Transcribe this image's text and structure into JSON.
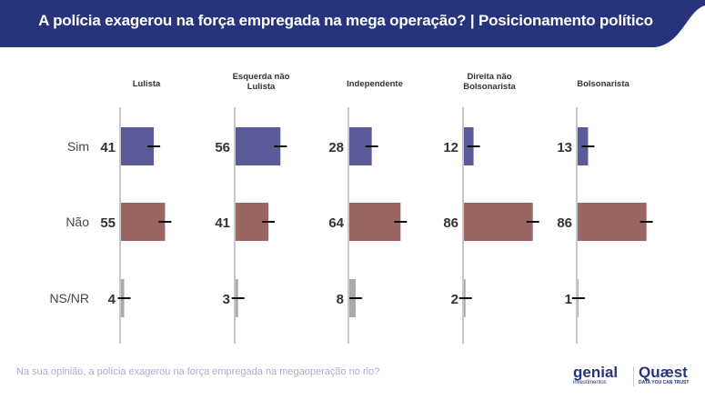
{
  "question": "Na sua opinião, a polícia exagerou na força empregada na megaoperação no rio?",
  "logos": [
    {
      "name": "genial",
      "sub": "investimentos"
    },
    {
      "name": "Quæst",
      "sub": "DATA YOU CAN TRUST"
    }
  ],
  "chart_data": {
    "type": "bar",
    "title": "A polícia exagerou na força empregada na mega operação? | Posicionamento político",
    "categories": [
      "Sim",
      "Não",
      "NS/NR"
    ],
    "groups": [
      "Lulista",
      "Esquerda não Lulista",
      "Independente",
      "Direita não Bolsonarista",
      "Bolsonarista"
    ],
    "series": [
      {
        "group": "Lulista",
        "values": [
          41,
          55,
          4
        ]
      },
      {
        "group": "Esquerda não Lulista",
        "values": [
          56,
          41,
          3
        ]
      },
      {
        "group": "Independente",
        "values": [
          28,
          64,
          8
        ]
      },
      {
        "group": "Direita não Bolsonarista",
        "values": [
          12,
          86,
          2
        ]
      },
      {
        "group": "Bolsonarista",
        "values": [
          13,
          86,
          1
        ]
      }
    ],
    "colors": {
      "Sim": "#5c5b9a",
      "Não": "#9a6663",
      "NS/NR": "#a9a9a9"
    },
    "error_bars": true,
    "xlim": [
      0,
      100
    ]
  }
}
